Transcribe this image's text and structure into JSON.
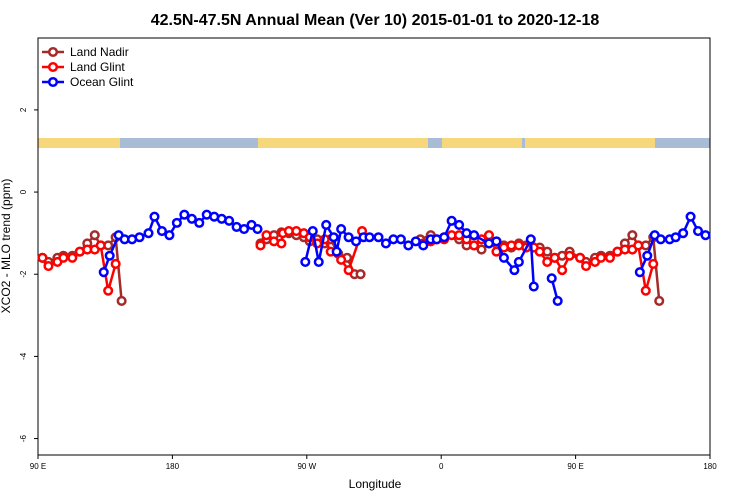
{
  "chart_data": {
    "type": "line",
    "title": "42.5N-47.5N Annual Mean (Ver 10)   2015-01-01 to 2020-12-18",
    "x_label": "Longitude",
    "y_label": "XCO2 - MLO trend (ppm)",
    "xlim": [
      90,
      540
    ],
    "xticks": [
      {
        "value": 90,
        "label": "90 E"
      },
      {
        "value": 180,
        "label": "180"
      },
      {
        "value": 270,
        "label": "90 W"
      },
      {
        "value": 360,
        "label": "0"
      },
      {
        "value": 450,
        "label": "90 E"
      },
      {
        "value": 540,
        "label": "180"
      }
    ],
    "ylim": [
      -6.4,
      3.75
    ],
    "yticks": [
      2,
      0,
      -2,
      -4,
      -6
    ],
    "legend": "top-left",
    "series": [
      {
        "name": "Land Nadir",
        "color": "#a52a2a",
        "x": [
          93,
          97,
          103,
          107,
          113,
          118,
          123,
          128,
          132,
          137,
          142,
          146,
          null,
          239,
          243,
          248,
          253,
          258,
          263,
          268,
          272,
          277,
          282,
          286,
          291,
          297,
          302,
          306,
          null,
          346,
          353,
          362,
          372,
          377,
          382,
          387,
          392,
          397,
          402,
          407,
          412,
          417,
          422,
          426,
          431,
          436,
          441,
          446,
          453,
          457,
          463,
          467,
          473,
          478,
          483,
          488,
          492,
          497,
          502,
          506
        ],
        "values": [
          -1.6,
          -1.7,
          -1.6,
          -1.55,
          -1.55,
          -1.45,
          -1.25,
          -1.05,
          -1.3,
          -1.3,
          -1.1,
          -2.65,
          null,
          -1.25,
          -1.15,
          -1.05,
          -0.98,
          -1.0,
          -1.05,
          -1.1,
          -1.2,
          -1.15,
          -1.25,
          -1.15,
          -1.5,
          -1.6,
          -2.0,
          -2.0,
          null,
          -1.15,
          -1.05,
          -1.1,
          -1.15,
          -1.3,
          -1.3,
          -1.4,
          -1.25,
          -1.2,
          -1.3,
          -1.35,
          -1.25,
          -1.3,
          -1.35,
          -1.35,
          -1.45,
          -1.6,
          -1.55,
          -1.45,
          -1.6,
          -1.7,
          -1.6,
          -1.55,
          -1.55,
          -1.45,
          -1.25,
          -1.05,
          -1.3,
          -1.3,
          -1.1,
          -2.65
        ]
      },
      {
        "name": "Land Glint",
        "color": "#ff0000",
        "x": [
          93,
          97,
          103,
          107,
          113,
          118,
          123,
          128,
          132,
          137,
          142,
          null,
          239,
          243,
          248,
          253,
          254,
          258,
          263,
          268,
          272,
          277,
          282,
          286,
          293,
          298,
          307,
          null,
          348,
          353,
          357,
          362,
          367,
          372,
          377,
          382,
          387,
          392,
          397,
          402,
          407,
          412,
          417,
          422,
          426,
          431,
          436,
          441,
          446,
          453,
          457,
          463,
          467,
          473,
          478,
          483,
          488,
          492,
          497,
          502
        ],
        "values": [
          -1.6,
          -1.8,
          -1.7,
          -1.6,
          -1.6,
          -1.45,
          -1.4,
          -1.4,
          -1.3,
          -2.4,
          -1.75,
          null,
          -1.3,
          -1.05,
          -1.2,
          -1.25,
          -1.0,
          -0.95,
          -0.95,
          -1.0,
          -1.1,
          -1.25,
          -1.15,
          -1.45,
          -1.65,
          -1.9,
          -0.95,
          null,
          -1.25,
          -1.2,
          -1.15,
          -1.15,
          -1.05,
          -1.05,
          -1.15,
          -1.3,
          -1.15,
          -1.05,
          -1.45,
          -1.35,
          -1.3,
          -1.3,
          -1.35,
          -1.35,
          -1.45,
          -1.7,
          -1.6,
          -1.9,
          -1.55,
          -1.6,
          -1.8,
          -1.7,
          -1.6,
          -1.6,
          -1.45,
          -1.4,
          -1.4,
          -1.3,
          -2.4,
          -1.75
        ]
      },
      {
        "name": "Ocean Glint",
        "color": "#0000ff",
        "x": [
          134,
          138,
          144,
          148,
          153,
          158,
          164,
          168,
          173,
          178,
          183,
          188,
          193,
          198,
          203,
          208,
          213,
          218,
          223,
          228,
          233,
          237,
          null,
          269,
          274,
          278,
          283,
          288,
          290,
          293,
          298,
          303,
          308,
          312,
          318,
          323,
          328,
          333,
          338,
          343,
          348,
          353,
          357,
          362,
          367,
          372,
          377,
          382,
          392,
          397,
          402,
          409,
          412,
          420,
          422,
          null,
          434,
          438,
          null,
          493,
          498,
          503,
          507,
          513,
          517,
          522,
          527,
          532,
          537
        ],
        "values": [
          -1.95,
          -1.55,
          -1.05,
          -1.15,
          -1.15,
          -1.1,
          -1.0,
          -0.6,
          -0.95,
          -1.05,
          -0.75,
          -0.55,
          -0.65,
          -0.75,
          -0.55,
          -0.6,
          -0.65,
          -0.7,
          -0.85,
          -0.9,
          -0.8,
          -0.9,
          null,
          -1.7,
          -0.95,
          -1.7,
          -0.8,
          -1.1,
          -1.45,
          -0.9,
          -1.1,
          -1.2,
          -1.1,
          -1.1,
          -1.1,
          -1.25,
          -1.15,
          -1.15,
          -1.3,
          -1.2,
          -1.3,
          -1.15,
          -1.15,
          -1.1,
          -0.7,
          -0.8,
          -1.0,
          -1.05,
          -1.25,
          -1.2,
          -1.6,
          -1.9,
          -1.7,
          -1.15,
          -2.3,
          null,
          -2.1,
          -2.65,
          null,
          -1.95,
          -1.55,
          -1.05,
          -1.15,
          -1.15,
          -1.1,
          -1.0,
          -0.6,
          -0.95,
          -1.05
        ]
      }
    ]
  }
}
